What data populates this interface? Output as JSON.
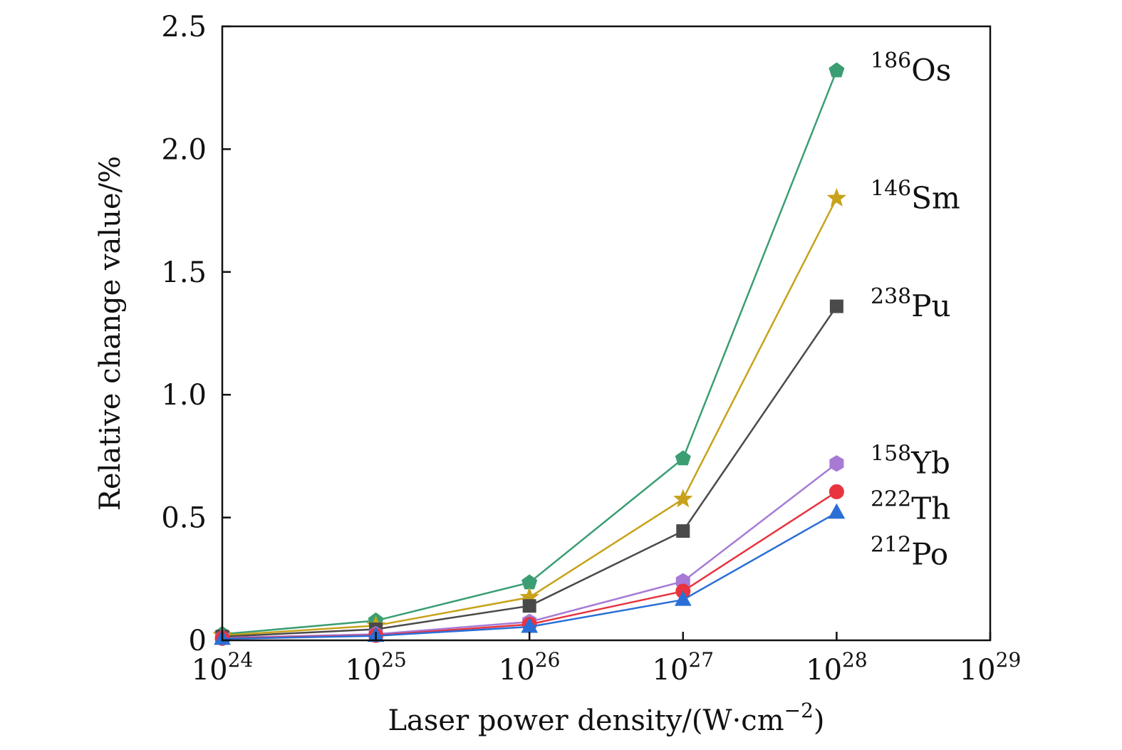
{
  "chart_data": {
    "type": "line",
    "x_scale": "log",
    "x": [
      1e+24,
      1e+25,
      1e+26,
      1e+27,
      1e+28
    ],
    "xlim": [
      1e+24,
      1e+29
    ],
    "ylim": [
      0,
      2.5
    ],
    "xlabel": "Laser power density/(W·cm",
    "xlabel_sup": "−2",
    "xlabel_end": ")",
    "ylabel": "Relative change value/%",
    "x_ticks": [
      {
        "base": "10",
        "exp": "24"
      },
      {
        "base": "10",
        "exp": "25"
      },
      {
        "base": "10",
        "exp": "26"
      },
      {
        "base": "10",
        "exp": "27"
      },
      {
        "base": "10",
        "exp": "28"
      },
      {
        "base": "10",
        "exp": "29"
      }
    ],
    "y_ticks": [
      {
        "value": 0,
        "label": "0"
      },
      {
        "value": 0.5,
        "label": "0.5"
      },
      {
        "value": 1.0,
        "label": "1.0"
      },
      {
        "value": 1.5,
        "label": "1.5"
      },
      {
        "value": 2.0,
        "label": "2.0"
      },
      {
        "value": 2.5,
        "label": "2.5"
      }
    ],
    "grid": false,
    "series": [
      {
        "mass": "186",
        "symbol": "Os",
        "color": "#3a9e72",
        "marker": "pentagon",
        "values": [
          0.025,
          0.08,
          0.235,
          0.74,
          2.32
        ]
      },
      {
        "mass": "146",
        "symbol": "Sm",
        "color": "#c8a21a",
        "marker": "star",
        "values": [
          0.02,
          0.06,
          0.175,
          0.575,
          1.8
        ]
      },
      {
        "mass": "238",
        "symbol": "Pu",
        "color": "#4a4a4a",
        "marker": "square",
        "values": [
          0.015,
          0.045,
          0.14,
          0.445,
          1.36
        ]
      },
      {
        "mass": "158",
        "symbol": "Yb",
        "color": "#a77ad6",
        "marker": "hexagon",
        "values": [
          0.01,
          0.025,
          0.075,
          0.24,
          0.72
        ]
      },
      {
        "mass": "222",
        "symbol": "Th",
        "color": "#e8343f",
        "marker": "circle",
        "values": [
          0.008,
          0.02,
          0.065,
          0.2,
          0.605
        ]
      },
      {
        "mass": "212",
        "symbol": "Po",
        "color": "#2a6fd6",
        "marker": "triangle",
        "values": [
          0.006,
          0.018,
          0.055,
          0.165,
          0.52
        ]
      }
    ]
  }
}
